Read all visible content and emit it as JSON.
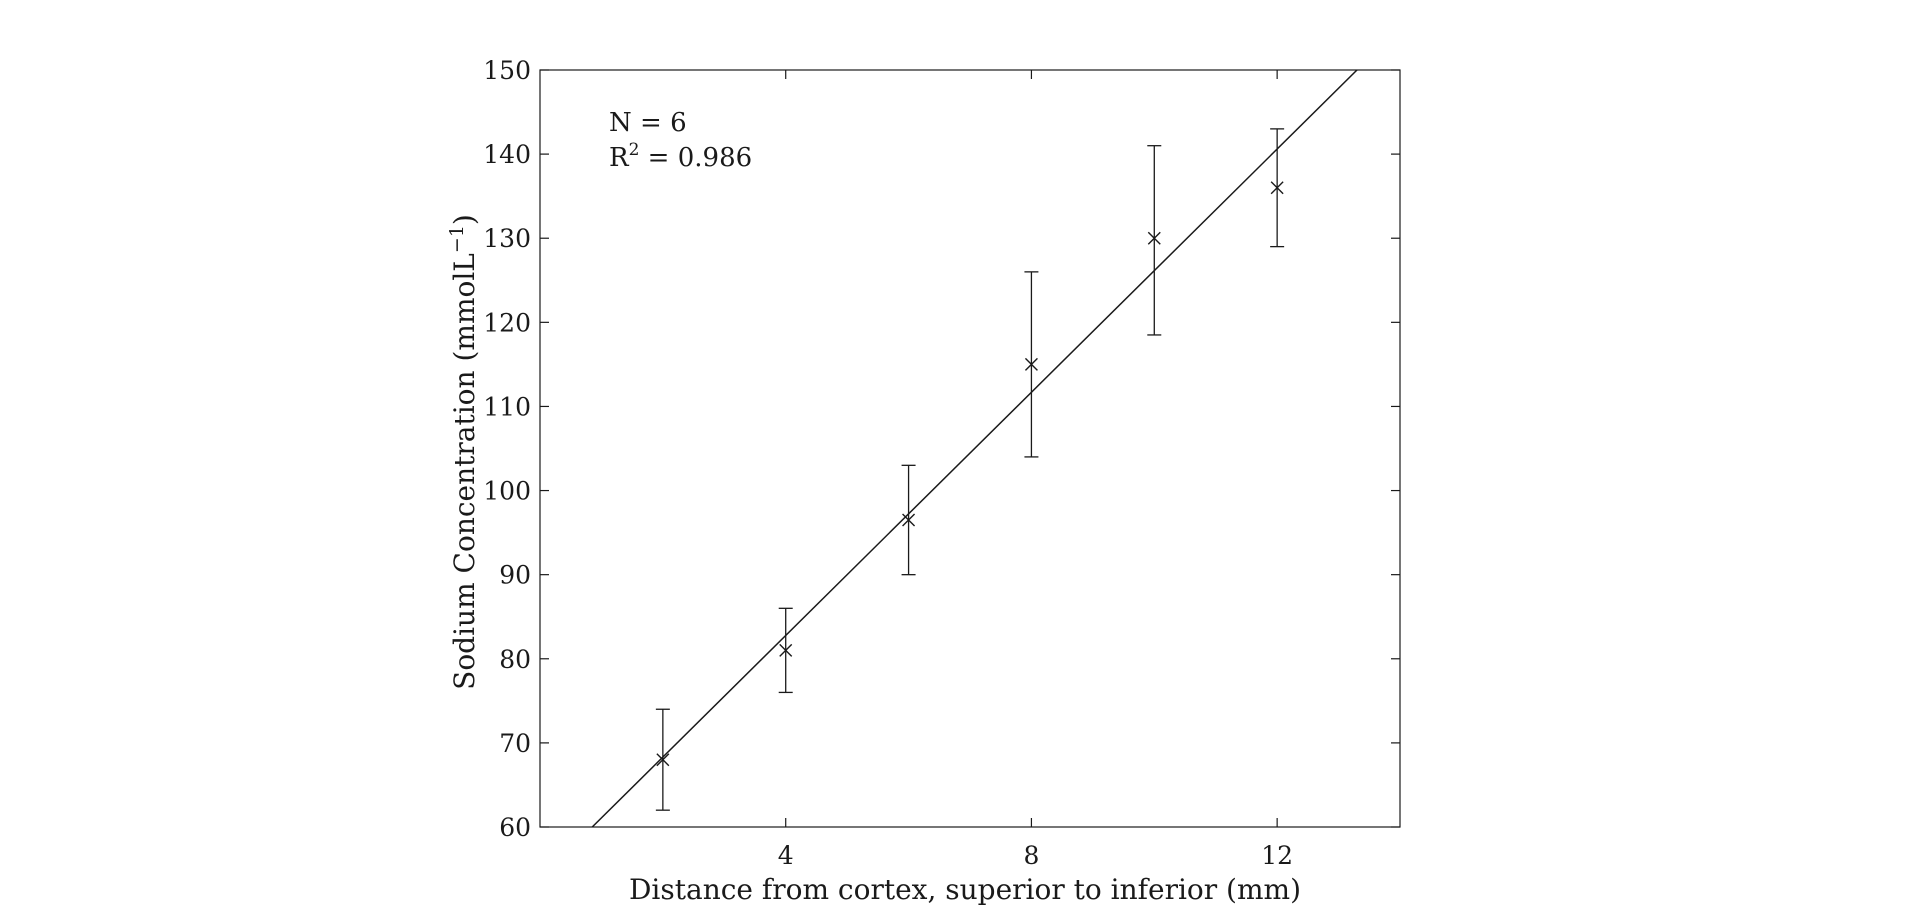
{
  "chart_data": {
    "type": "scatter",
    "title": "",
    "xlabel": "Distance from cortex, superior to inferior (mm)",
    "ylabel": "Sodium Concentration (mmolL",
    "ylabel_sup": "−1",
    "ylabel_close": ")",
    "xlim": [
      0,
      14
    ],
    "ylim": [
      60,
      150
    ],
    "xticks": [
      4,
      8,
      12
    ],
    "xtick_labels": [
      "4",
      "8",
      "12"
    ],
    "yticks": [
      60,
      70,
      80,
      90,
      100,
      110,
      120,
      130,
      140,
      150
    ],
    "ytick_labels": [
      "60",
      "70",
      "80",
      "90",
      "100",
      "110",
      "120",
      "130",
      "140",
      "150"
    ],
    "grid": false,
    "series": [
      {
        "marker": "x",
        "x": [
          2,
          4,
          6,
          8,
          10,
          12
        ],
        "y": [
          68,
          81,
          96.5,
          115,
          130,
          136
        ],
        "err_low": [
          62,
          76,
          90,
          104,
          118.5,
          129
        ],
        "err_high": [
          74,
          86,
          103,
          126,
          141,
          143
        ]
      }
    ],
    "fit_line": {
      "x": [
        0.85,
        13.3
      ],
      "y": [
        60,
        150
      ]
    },
    "annotations": {
      "n_text": "N = 6",
      "r2_prefix": "R",
      "r2_sup": "2",
      "r2_value": " = 0.986"
    },
    "colors": {
      "axis": "#1a1a1a",
      "series": "#1a1a1a",
      "background": "#ffffff"
    }
  }
}
